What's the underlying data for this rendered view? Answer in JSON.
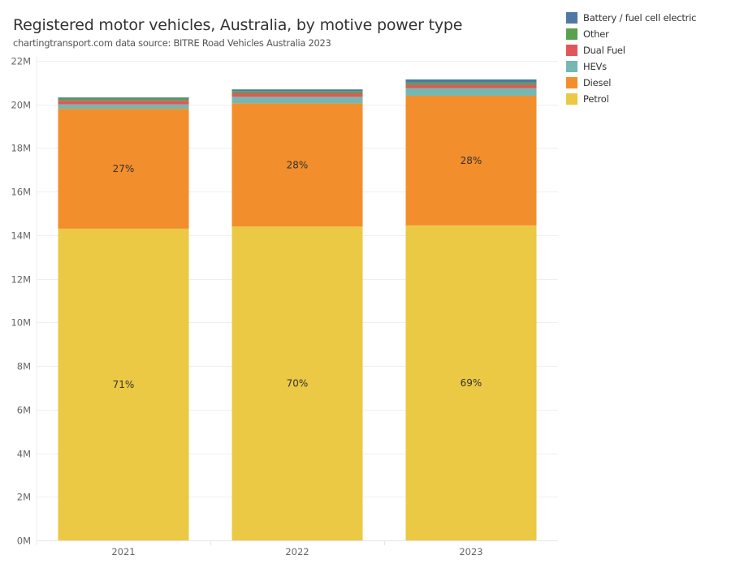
{
  "chart_data": {
    "type": "bar",
    "stacked": true,
    "title": "Registered motor vehicles, Australia, by motive power type",
    "subtitle": "chartingtransport.com  data source: BITRE Road Vehicles Australia 2023",
    "xlabel": "",
    "ylabel": "",
    "categories": [
      "2021",
      "2022",
      "2023"
    ],
    "ylim": [
      0,
      22000000
    ],
    "yticks": [
      0,
      2000000,
      4000000,
      6000000,
      8000000,
      10000000,
      12000000,
      14000000,
      16000000,
      18000000,
      20000000,
      22000000
    ],
    "ytick_labels": [
      "0M",
      "2M",
      "4M",
      "6M",
      "8M",
      "10M",
      "12M",
      "14M",
      "16M",
      "18M",
      "20M",
      "22M"
    ],
    "grid": true,
    "legend_position": "top-right",
    "series": [
      {
        "name": "Petrol",
        "color": "#EBC944",
        "values": [
          14300000,
          14400000,
          14450000
        ],
        "labels": [
          "71%",
          "70%",
          "69%"
        ]
      },
      {
        "name": "Diesel",
        "color": "#F28E2C",
        "values": [
          5500000,
          5650000,
          5950000
        ],
        "labels": [
          "27%",
          "28%",
          "28%"
        ]
      },
      {
        "name": "HEVs",
        "color": "#76B7B2",
        "values": [
          200000,
          300000,
          350000
        ],
        "labels": [
          "",
          "",
          ""
        ]
      },
      {
        "name": "Dual Fuel",
        "color": "#E15759",
        "values": [
          170000,
          160000,
          150000
        ],
        "labels": [
          "",
          "",
          ""
        ]
      },
      {
        "name": "Other",
        "color": "#59A14F",
        "values": [
          100000,
          100000,
          100000
        ],
        "labels": [
          "",
          "",
          ""
        ]
      },
      {
        "name": "Battery / fuel cell electric",
        "color": "#4E79A7",
        "values": [
          50000,
          80000,
          150000
        ],
        "labels": [
          "",
          "",
          ""
        ]
      }
    ],
    "legend_order": [
      "Battery / fuel cell electric",
      "Other",
      "Dual Fuel",
      "HEVs",
      "Diesel",
      "Petrol"
    ]
  }
}
